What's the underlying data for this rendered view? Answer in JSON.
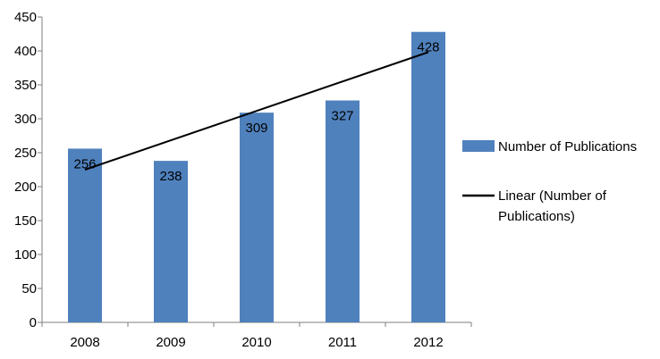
{
  "chart_data": {
    "type": "bar",
    "title": "",
    "xlabel": "",
    "ylabel": "",
    "categories": [
      "2008",
      "2009",
      "2010",
      "2011",
      "2012"
    ],
    "series": [
      {
        "name": "Number of Publications",
        "values": [
          256,
          238,
          309,
          327,
          428
        ],
        "color": "#4F81BD"
      }
    ],
    "trendline": {
      "type": "linear",
      "label_lines": [
        "Linear (Number of",
        "Publications)"
      ],
      "color": "#000000"
    },
    "y_ticks": [
      "0",
      "50",
      "100",
      "150",
      "200",
      "250",
      "300",
      "350",
      "400",
      "450"
    ],
    "ylim": [
      0,
      450
    ],
    "grid": false,
    "legend_position": "right",
    "data_labels": true
  }
}
